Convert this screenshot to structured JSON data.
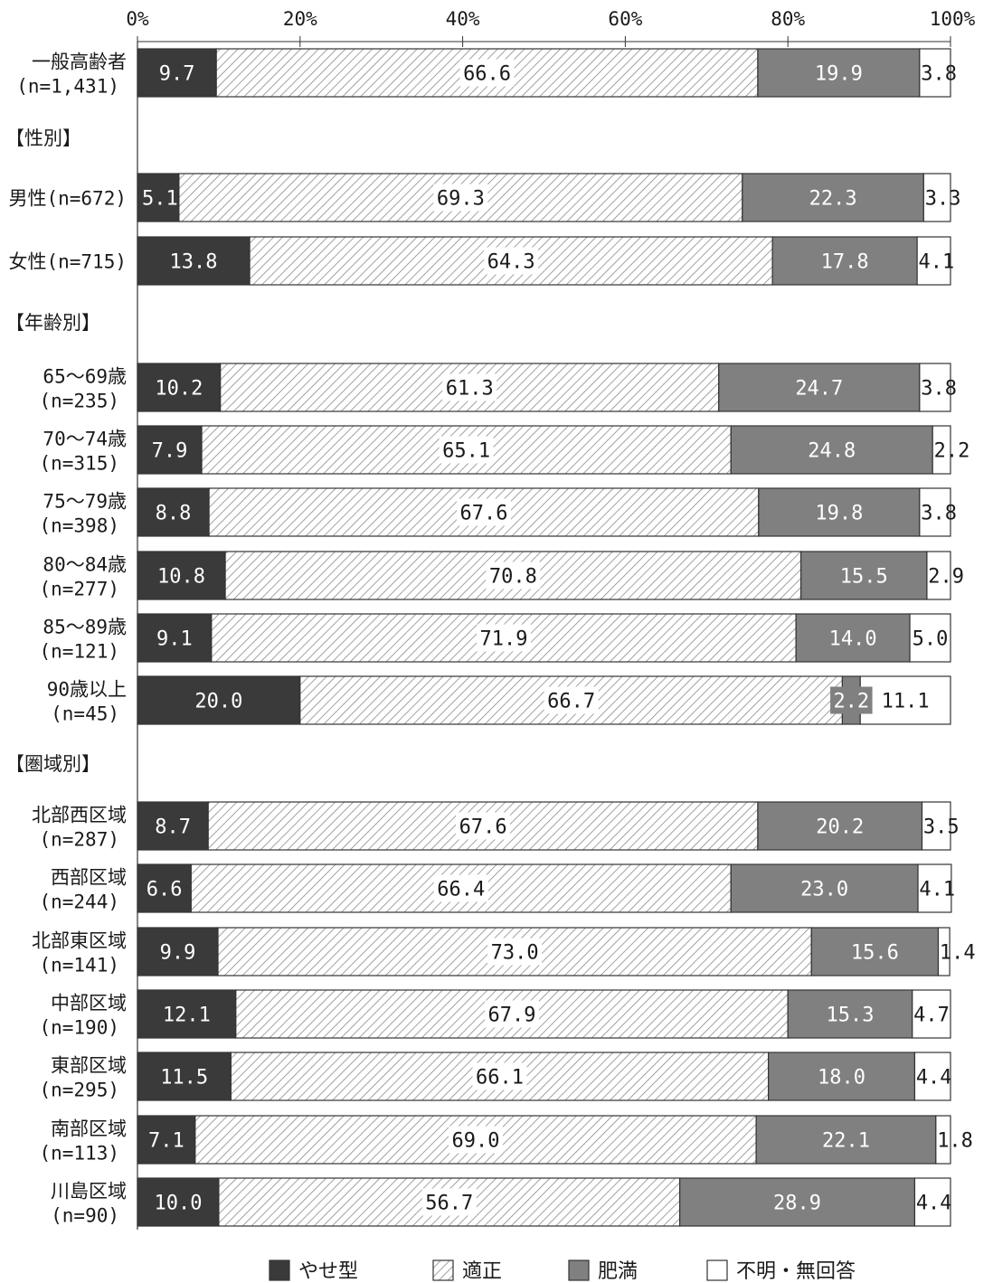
{
  "chart_data": {
    "type": "bar",
    "orientation": "horizontal",
    "stacked": true,
    "percent_axis": true,
    "xlim": [
      0,
      100
    ],
    "x_ticks": [
      "0%",
      "20%",
      "40%",
      "60%",
      "80%",
      "100%"
    ],
    "series": [
      {
        "name": "やせ型",
        "color": "#3a3a3a"
      },
      {
        "name": "適正",
        "color": "#ffffff",
        "pattern": "diagonal-hatch"
      },
      {
        "name": "肥満",
        "color": "#808080"
      },
      {
        "name": "不明・無回答",
        "color": "#ffffff"
      }
    ],
    "groups": [
      {
        "header": "",
        "rows": [
          {
            "label": [
              "一般高齢者",
              "(n=1,431)"
            ],
            "values": [
              9.7,
              66.6,
              19.9,
              3.8
            ]
          }
        ]
      },
      {
        "header": "【性別】",
        "rows": [
          {
            "label": [
              "男性(n=672)"
            ],
            "values": [
              5.1,
              69.3,
              22.3,
              3.3
            ]
          },
          {
            "label": [
              "女性(n=715)"
            ],
            "values": [
              13.8,
              64.3,
              17.8,
              4.1
            ]
          }
        ]
      },
      {
        "header": "【年齢別】",
        "rows": [
          {
            "label": [
              "65～69歳",
              "(n=235)"
            ],
            "values": [
              10.2,
              61.3,
              24.7,
              3.8
            ]
          },
          {
            "label": [
              "70～74歳",
              "(n=315)"
            ],
            "values": [
              7.9,
              65.1,
              24.8,
              2.2
            ]
          },
          {
            "label": [
              "75～79歳",
              "(n=398)"
            ],
            "values": [
              8.8,
              67.6,
              19.8,
              3.8
            ]
          },
          {
            "label": [
              "80～84歳",
              "(n=277)"
            ],
            "values": [
              10.8,
              70.8,
              15.5,
              2.9
            ]
          },
          {
            "label": [
              "85～89歳",
              "(n=121)"
            ],
            "values": [
              9.1,
              71.9,
              14.0,
              5.0
            ]
          },
          {
            "label": [
              "90歳以上",
              "(n=45)"
            ],
            "values": [
              20.0,
              66.7,
              2.2,
              11.1
            ]
          }
        ]
      },
      {
        "header": "【圏域別】",
        "rows": [
          {
            "label": [
              "北部西区域",
              "(n=287)"
            ],
            "values": [
              8.7,
              67.6,
              20.2,
              3.5
            ]
          },
          {
            "label": [
              "西部区域",
              "(n=244)"
            ],
            "values": [
              6.6,
              66.4,
              23.0,
              4.1
            ]
          },
          {
            "label": [
              "北部東区域",
              "(n=141)"
            ],
            "values": [
              9.9,
              73.0,
              15.6,
              1.4
            ]
          },
          {
            "label": [
              "中部区域",
              "(n=190)"
            ],
            "values": [
              12.1,
              67.9,
              15.3,
              4.7
            ]
          },
          {
            "label": [
              "東部区域",
              "(n=295)"
            ],
            "values": [
              11.5,
              66.1,
              18.0,
              4.4
            ]
          },
          {
            "label": [
              "南部区域",
              "(n=113)"
            ],
            "values": [
              7.1,
              69.0,
              22.1,
              1.8
            ]
          },
          {
            "label": [
              "川島区域",
              "(n=90)"
            ],
            "values": [
              10.0,
              56.7,
              28.9,
              4.4
            ]
          }
        ]
      }
    ],
    "grid": false,
    "legend_position": "bottom"
  }
}
